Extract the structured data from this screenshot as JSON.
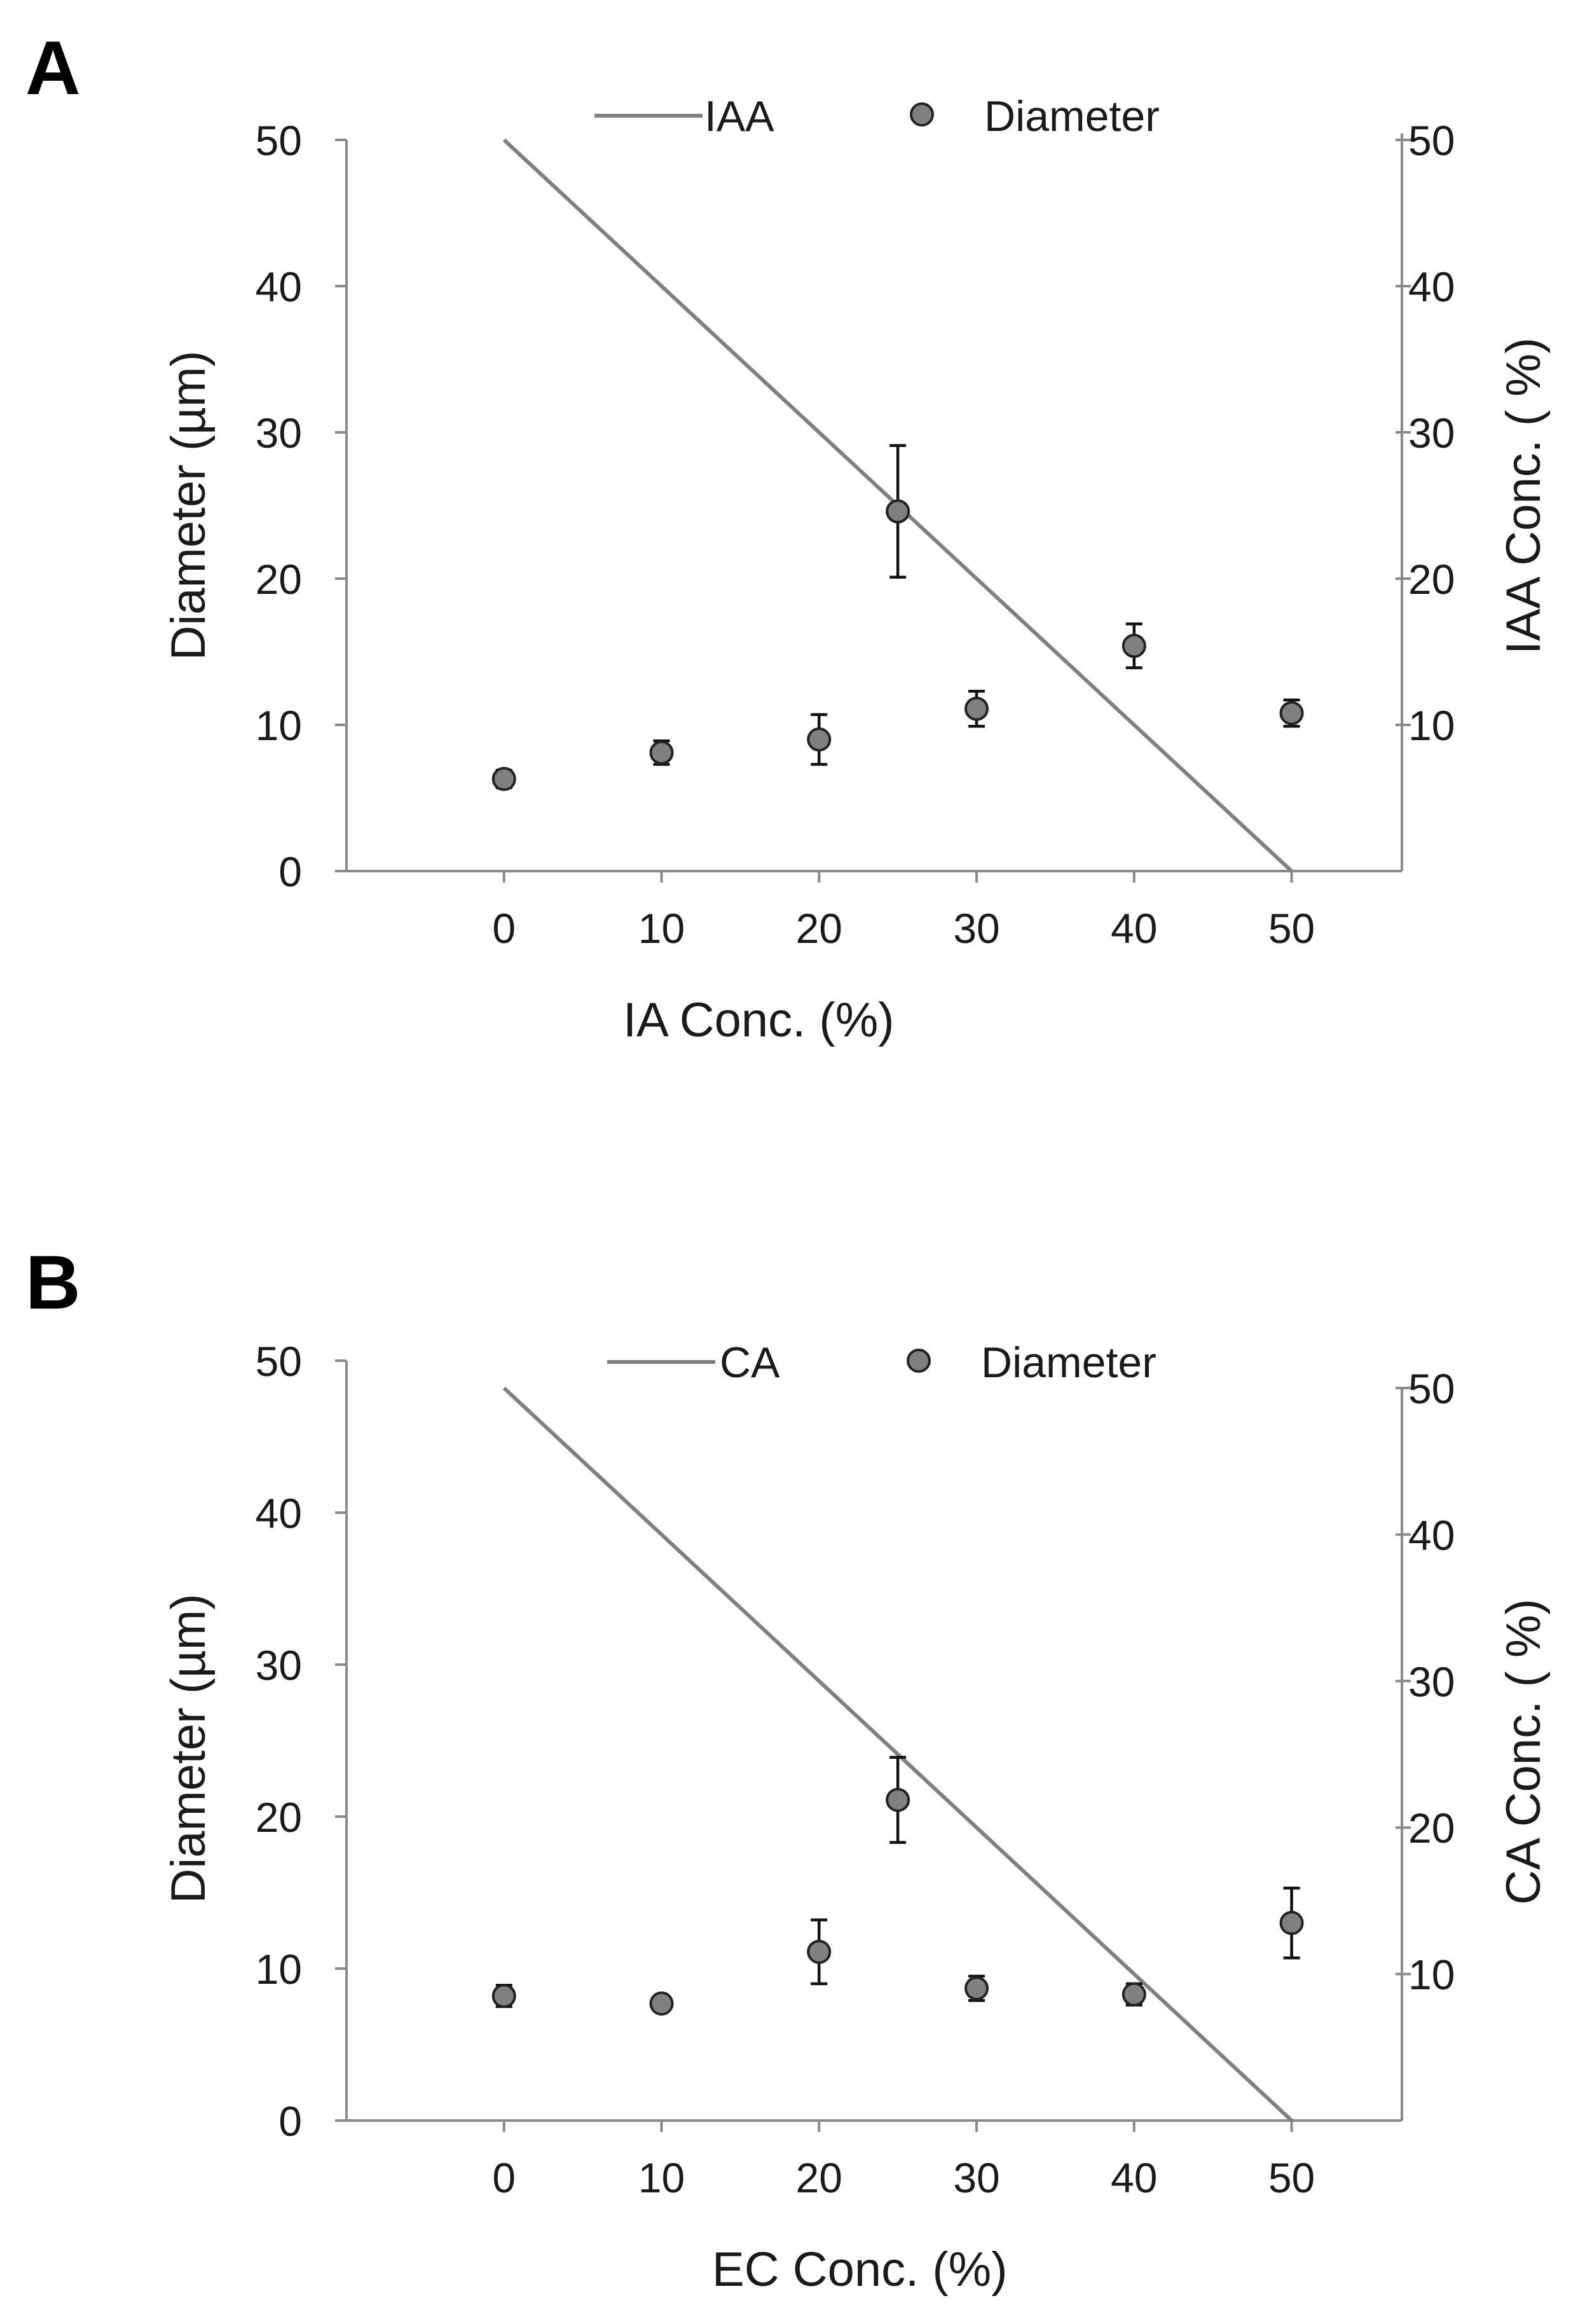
{
  "chart_data": [
    {
      "panel": "A",
      "type": "scatter",
      "xlabel": "IA Conc. (%)",
      "ylabel": "Diameter (µm)",
      "y2label": "IAA Conc. ( %)",
      "xlim": [
        -10,
        57
      ],
      "ylim": [
        0,
        50
      ],
      "y2lim": [
        0,
        50
      ],
      "x_ticks": [
        "0",
        "10",
        "20",
        "30",
        "40",
        "50"
      ],
      "y_ticks": [
        "0",
        "10",
        "20",
        "30",
        "40",
        "50"
      ],
      "y2_ticks": [
        "10",
        "20",
        "30",
        "40",
        "50"
      ],
      "legend": {
        "line_label": "IAA",
        "marker_label": "Diameter",
        "position": "top"
      },
      "line_series": {
        "name": "IAA",
        "x": [
          0,
          50
        ],
        "y": [
          50,
          0
        ],
        "color": "#808080"
      },
      "scatter_series": {
        "name": "Diameter",
        "x": [
          0,
          10,
          20,
          25,
          30,
          40,
          50
        ],
        "y": [
          6.3,
          8.1,
          9.0,
          24.6,
          11.1,
          15.4,
          10.8
        ],
        "err": [
          0.6,
          0.8,
          1.7,
          4.5,
          1.2,
          1.5,
          0.9
        ],
        "color": "#808080"
      }
    },
    {
      "panel": "B",
      "type": "scatter",
      "xlabel": "EC Conc. (%)",
      "ylabel": "Diameter (µm)",
      "y2label": "CA Conc. ( %)",
      "xlim": [
        -10,
        57
      ],
      "ylim": [
        0,
        50
      ],
      "y2lim": [
        0,
        50
      ],
      "x_ticks": [
        "0",
        "10",
        "20",
        "30",
        "40",
        "50"
      ],
      "y_ticks": [
        "0",
        "10",
        "20",
        "30",
        "40",
        "50"
      ],
      "y2_ticks": [
        "10",
        "20",
        "30",
        "40",
        "50"
      ],
      "legend": {
        "line_label": "CA",
        "marker_label": "Diameter",
        "position": "top"
      },
      "line_series": {
        "name": "CA",
        "x": [
          0,
          50
        ],
        "y": [
          50,
          0
        ],
        "color": "#808080"
      },
      "scatter_series": {
        "name": "Diameter",
        "x": [
          0,
          10,
          20,
          25,
          30,
          40,
          50
        ],
        "y": [
          8.2,
          7.7,
          11.1,
          21.1,
          8.7,
          8.3,
          13.0
        ],
        "err": [
          0.7,
          0.3,
          2.1,
          2.8,
          0.8,
          0.7,
          2.3
        ],
        "color": "#808080"
      }
    }
  ]
}
